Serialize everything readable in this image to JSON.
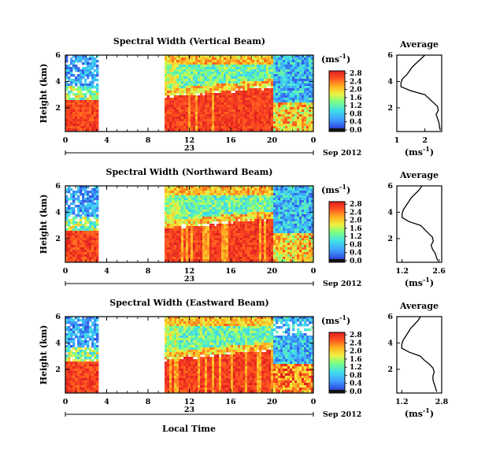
{
  "figure": {
    "xlabel": "Local Time",
    "ylabel": "Height (km)",
    "date_label": "Sep 2012",
    "day_label": "23",
    "cb_unit": "(ms",
    "cb_unit_exp": "-1",
    "cb_unit_close": ")",
    "avg_title": "Average",
    "avg_unit": "(ms",
    "avg_unit_exp": "-1",
    "avg_unit_close": ")"
  },
  "chart_data": [
    {
      "type": "heatmap",
      "title": "Spectral Width (Vertical Beam)",
      "xlabel": "",
      "ylabel": "Height (km)",
      "x_ticks": [
        "0",
        "4",
        "8",
        "12",
        "16",
        "20",
        "0"
      ],
      "xlim": [
        0,
        24
      ],
      "y_ticks": [
        "2",
        "4",
        "6"
      ],
      "ylim": [
        0.2,
        6.0
      ],
      "colorbar": {
        "ticks": [
          "0.0",
          "0.4",
          "0.8",
          "1.2",
          "1.6",
          "2.0",
          "2.4",
          "2.8"
        ],
        "range": [
          0.0,
          3.0
        ]
      },
      "data_gap_hours": [
        3.1,
        9.5
      ],
      "average_profile": {
        "title": "Average",
        "x_ticks": [
          "1",
          "2"
        ],
        "xlim": [
          1.0,
          2.6
        ],
        "ylim": [
          0.2,
          6.0
        ],
        "y_ticks": [
          "2",
          "4",
          "6"
        ],
        "height_km": [
          0.3,
          0.6,
          0.9,
          1.2,
          1.5,
          1.8,
          2.1,
          2.4,
          2.7,
          3.0,
          3.3,
          3.6,
          3.9,
          4.2,
          4.5,
          4.8,
          5.1,
          5.4,
          5.7,
          6.0
        ],
        "width": [
          2.55,
          2.52,
          2.5,
          2.45,
          2.4,
          2.48,
          2.45,
          2.3,
          2.15,
          2.0,
          1.5,
          1.15,
          1.15,
          1.2,
          1.35,
          1.45,
          1.55,
          1.7,
          1.85,
          2.0
        ]
      }
    },
    {
      "type": "heatmap",
      "title": "Spectral Width (Northward Beam)",
      "xlabel": "",
      "ylabel": "Height (km)",
      "x_ticks": [
        "0",
        "4",
        "8",
        "12",
        "16",
        "20",
        "0"
      ],
      "xlim": [
        0,
        24
      ],
      "y_ticks": [
        "2",
        "4",
        "6"
      ],
      "ylim": [
        0.2,
        6.0
      ],
      "colorbar": {
        "ticks": [
          "0.0",
          "0.4",
          "0.8",
          "1.2",
          "1.6",
          "2.0",
          "2.4",
          "2.8"
        ],
        "range": [
          0.0,
          3.0
        ]
      },
      "data_gap_hours": [
        3.1,
        9.5
      ],
      "average_profile": {
        "title": "Average",
        "x_ticks": [
          "1.2",
          "2.6"
        ],
        "xlim": [
          1.0,
          2.7
        ],
        "ylim": [
          0.2,
          6.0
        ],
        "y_ticks": [
          "2",
          "4",
          "6"
        ],
        "height_km": [
          0.3,
          0.6,
          0.9,
          1.2,
          1.5,
          1.8,
          2.1,
          2.4,
          2.7,
          3.0,
          3.3,
          3.6,
          3.9,
          4.2,
          4.5,
          4.8,
          5.1,
          5.4,
          5.7,
          6.0
        ],
        "width": [
          2.55,
          2.5,
          2.45,
          2.35,
          2.3,
          2.38,
          2.35,
          2.2,
          2.05,
          1.9,
          1.45,
          1.2,
          1.2,
          1.25,
          1.35,
          1.45,
          1.55,
          1.7,
          1.85,
          1.95
        ]
      }
    },
    {
      "type": "heatmap",
      "title": "Spectral Width (Eastward Beam)",
      "xlabel": "Local Time",
      "ylabel": "Height (km)",
      "x_ticks": [
        "0",
        "4",
        "8",
        "12",
        "16",
        "20",
        "0"
      ],
      "xlim": [
        0,
        24
      ],
      "y_ticks": [
        "2",
        "4",
        "6"
      ],
      "ylim": [
        0.2,
        6.0
      ],
      "colorbar": {
        "ticks": [
          "0.0",
          "0.4",
          "0.8",
          "1.2",
          "1.6",
          "2.0",
          "2.4",
          "2.8"
        ],
        "range": [
          0.0,
          3.0
        ]
      },
      "data_gap_hours": [
        3.1,
        9.5
      ],
      "average_profile": {
        "title": "Average",
        "x_ticks": [
          "1.2",
          "2.8"
        ],
        "xlim": [
          1.0,
          2.8
        ],
        "ylim": [
          0.2,
          6.0
        ],
        "y_ticks": [
          "2",
          "4",
          "6"
        ],
        "height_km": [
          0.3,
          0.6,
          0.9,
          1.2,
          1.5,
          1.8,
          2.1,
          2.4,
          2.7,
          3.0,
          3.3,
          3.6,
          3.9,
          4.2,
          4.5,
          4.8,
          5.1,
          5.4,
          5.7,
          6.0
        ],
        "width": [
          2.6,
          2.55,
          2.5,
          2.45,
          2.45,
          2.5,
          2.45,
          2.3,
          2.1,
          1.95,
          1.5,
          1.2,
          1.2,
          1.25,
          1.35,
          1.45,
          1.55,
          1.7,
          1.85,
          1.95
        ]
      }
    }
  ]
}
